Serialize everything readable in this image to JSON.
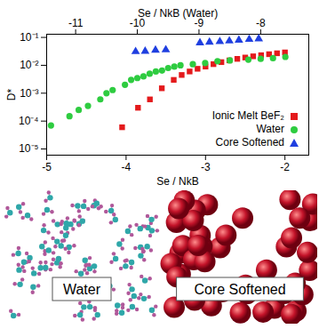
{
  "chart_data": {
    "type": "scatter",
    "xlabel": "Se / NkB",
    "x2label": "Se / NkB (Water)",
    "ylabel": "D*",
    "log": "y",
    "legend": "bottom-right",
    "xlim": [
      -5,
      -1.7
    ],
    "xticks": [
      -5,
      -4,
      -3,
      -2
    ],
    "x2lim": [
      -11.47,
      -7.22
    ],
    "x2ticks": [
      -11,
      -10,
      -9,
      -8
    ],
    "ylim": [
      6e-06,
      0.13
    ],
    "yticks": [
      {
        "value": 1e-05,
        "label": "10⁻⁵"
      },
      {
        "value": 0.0001,
        "label": "10⁻⁴"
      },
      {
        "value": 0.001,
        "label": "10⁻³"
      },
      {
        "value": 0.01,
        "label": "10⁻²"
      },
      {
        "value": 0.1,
        "label": "10⁻¹"
      }
    ],
    "series": [
      {
        "name": "Ionic Melt BeF₂",
        "color": "#e41a1c",
        "marker": "square",
        "x": [
          -4.05,
          -3.85,
          -3.7,
          -3.55,
          -3.4,
          -3.3,
          -3.2,
          -3.1,
          -3.0,
          -2.9,
          -2.8,
          -2.7,
          -2.6,
          -2.5,
          -2.4,
          -2.3,
          -2.2,
          -2.1,
          -2.0
        ],
        "values": [
          6e-05,
          0.0003,
          0.0006,
          0.0015,
          0.003,
          0.0045,
          0.006,
          0.0075,
          0.009,
          0.011,
          0.013,
          0.015,
          0.017,
          0.019,
          0.021,
          0.023,
          0.025,
          0.027,
          0.029
        ]
      },
      {
        "name": "Water",
        "color": "#2ecc40",
        "marker": "circle",
        "axis": "x2",
        "x": [
          -11.4,
          -11.1,
          -10.95,
          -10.8,
          -10.6,
          -10.5,
          -10.4,
          -10.2,
          -10.1,
          -10.0,
          -9.9,
          -9.8,
          -9.7,
          -9.6,
          -9.5,
          -9.4,
          -9.3,
          -9.1,
          -8.9,
          -8.7,
          -8.5,
          -8.2,
          -8.0,
          -7.8,
          -7.6
        ],
        "values": [
          7e-05,
          0.00015,
          0.00025,
          0.00035,
          0.0006,
          0.001,
          0.0013,
          0.002,
          0.003,
          0.0035,
          0.004,
          0.005,
          0.006,
          0.0065,
          0.008,
          0.009,
          0.01,
          0.011,
          0.012,
          0.014,
          0.015,
          0.016,
          0.017,
          0.018,
          0.02
        ]
      },
      {
        "name": "Core Softened",
        "color": "#1f3fe0",
        "marker": "triangle",
        "x": [
          -3.88,
          -3.76,
          -3.63,
          -3.5,
          -3.07,
          -2.95,
          -2.82,
          -2.7,
          -2.58,
          -2.45,
          -2.33
        ],
        "values": [
          0.031,
          0.032,
          0.035,
          0.036,
          0.064,
          0.068,
          0.071,
          0.075,
          0.08,
          0.085,
          0.089
        ]
      }
    ],
    "annotations": [
      "Water",
      "Core Softened"
    ]
  }
}
